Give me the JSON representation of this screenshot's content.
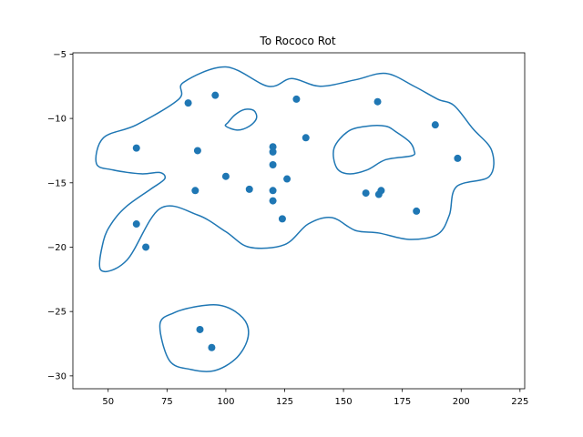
{
  "chart_data": {
    "type": "scatter",
    "title": "To Rococo Rot",
    "xlabel": "",
    "ylabel": "",
    "xlim": [
      35,
      227
    ],
    "ylim": [
      -31,
      -4.9
    ],
    "xticks": [
      50,
      75,
      100,
      125,
      150,
      175,
      200,
      225
    ],
    "yticks": [
      -5,
      -10,
      -15,
      -20,
      -25,
      -30
    ],
    "grid": false,
    "colors": {
      "series": "#1f77b4",
      "axes": "#000000",
      "background": "#ffffff"
    },
    "points": {
      "x": [
        62,
        66,
        62,
        84,
        87,
        88,
        95.5,
        100,
        110,
        120,
        120,
        120,
        120,
        120,
        124,
        126,
        130,
        134,
        159.5,
        164.5,
        165,
        166,
        181,
        189,
        198.5,
        89,
        94
      ],
      "y": [
        -12.3,
        -20.0,
        -18.2,
        -8.8,
        -15.6,
        -12.5,
        -8.2,
        -14.5,
        -15.5,
        -12.2,
        -12.6,
        -13.6,
        -15.6,
        -16.4,
        -17.8,
        -14.7,
        -8.5,
        -11.5,
        -15.8,
        -8.7,
        -15.9,
        -15.6,
        -17.2,
        -10.5,
        -13.1,
        -26.4,
        -27.8
      ]
    },
    "contours": [
      {
        "x": [
          82,
          100,
          118,
          128,
          140,
          155,
          168,
          180,
          190,
          197,
          205,
          213,
          212,
          198,
          195,
          190,
          178,
          165,
          155,
          145,
          135,
          125,
          110,
          100,
          88,
          72,
          58,
          47,
          48,
          52,
          58,
          68,
          74,
          72,
          64,
          52,
          45,
          48,
          62,
          80
        ],
        "y": [
          -7.2,
          -6.0,
          -7.5,
          -6.9,
          -7.5,
          -7.0,
          -6.5,
          -7.5,
          -8.5,
          -9.0,
          -10.8,
          -12.5,
          -14.5,
          -15.3,
          -17.5,
          -19.0,
          -19.4,
          -18.9,
          -18.7,
          -17.7,
          -18.2,
          -19.8,
          -20.0,
          -18.8,
          -17.5,
          -17.0,
          -21.0,
          -21.8,
          -19.5,
          -18.0,
          -16.8,
          -15.5,
          -14.7,
          -14.2,
          -14.3,
          -14.0,
          -13.5,
          -11.5,
          -10.5,
          -8.5
        ]
      },
      {
        "x": [
          146,
          152,
          160,
          168,
          172,
          178,
          180,
          179,
          168,
          160,
          152,
          147,
          146
        ],
        "y": [
          -12.3,
          -11.0,
          -10.6,
          -10.6,
          -11.0,
          -11.8,
          -12.5,
          -12.9,
          -13.2,
          -14.0,
          -14.3,
          -13.8,
          -12.3
        ]
      },
      {
        "x": [
          104,
          108,
          112,
          113,
          110,
          105,
          100,
          101,
          104
        ],
        "y": [
          -9.7,
          -9.3,
          -9.4,
          -10.0,
          -10.6,
          -10.9,
          -10.6,
          -10.3,
          -9.7
        ]
      },
      {
        "x": [
          72,
          78,
          88,
          97,
          104,
          109,
          109,
          104,
          95,
          85,
          76,
          72
        ],
        "y": [
          -26.0,
          -25.1,
          -24.6,
          -24.5,
          -25.0,
          -26.0,
          -27.3,
          -28.7,
          -29.6,
          -29.5,
          -28.8,
          -26.0
        ]
      }
    ]
  }
}
